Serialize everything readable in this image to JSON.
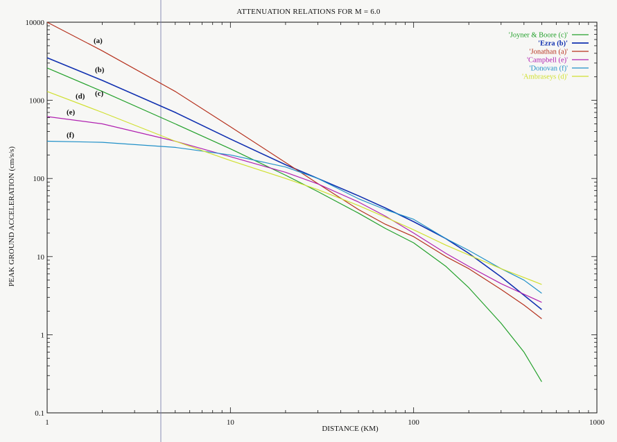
{
  "chart_data": {
    "type": "line",
    "title": "ATTENUATION RELATIONS FOR M = 6.0",
    "xlabel": "DISTANCE (KM)",
    "ylabel": "PEAK GROUND ACCELERATION (cm/s/s)",
    "xscale": "log",
    "yscale": "log",
    "xlim": [
      1,
      1000
    ],
    "ylim": [
      0.1,
      10000
    ],
    "x_ticks": [
      "1",
      "10",
      "100",
      "1000"
    ],
    "y_ticks": [
      "0.1",
      "1",
      "10",
      "100",
      "1000",
      "10000"
    ],
    "grid": false,
    "legend_position": "top-right",
    "series": [
      {
        "name": "'Joyner & Boore (c)'",
        "curve_label": "(c)",
        "color": "#22a02a",
        "x": [
          1,
          2,
          5,
          10,
          20,
          30,
          50,
          70,
          100,
          150,
          200,
          300,
          400,
          500
        ],
        "y": [
          2600,
          1300,
          500,
          240,
          110,
          68,
          36,
          23,
          15,
          7.5,
          4,
          1.4,
          0.6,
          0.25
        ]
      },
      {
        "name": "'Ezra (b)'",
        "curve_label": "(b)",
        "color": "#1030b0",
        "x": [
          1,
          2,
          5,
          10,
          20,
          30,
          50,
          70,
          100,
          150,
          200,
          300,
          400,
          500
        ],
        "y": [
          3500,
          1800,
          700,
          320,
          150,
          100,
          60,
          42,
          28,
          17,
          11,
          5.5,
          3.2,
          2.1
        ]
      },
      {
        "name": "'Jonathan (a)'",
        "curve_label": "(a)",
        "color": "#b5301c",
        "x": [
          1,
          2,
          5,
          10,
          20,
          30,
          50,
          70,
          100,
          150,
          200,
          300,
          400,
          500
        ],
        "y": [
          10000,
          4300,
          1300,
          460,
          160,
          86,
          40,
          26,
          18,
          10,
          7,
          3.8,
          2.4,
          1.6
        ]
      },
      {
        "name": "'Campbell (e)'",
        "curve_label": "(e)",
        "color": "#b020b0",
        "x": [
          1,
          2,
          5,
          10,
          20,
          30,
          50,
          70,
          100,
          150,
          200,
          300,
          400,
          500
        ],
        "y": [
          620,
          500,
          300,
          190,
          120,
          85,
          50,
          33,
          20,
          11,
          7.5,
          4.5,
          3.3,
          2.6
        ]
      },
      {
        "name": "'Donovan (f)'",
        "curve_label": "(f)",
        "color": "#2090c8",
        "x": [
          1,
          2,
          5,
          10,
          20,
          30,
          50,
          70,
          100,
          150,
          200,
          300,
          400,
          500
        ],
        "y": [
          300,
          290,
          250,
          200,
          140,
          100,
          55,
          40,
          30,
          17,
          12,
          7,
          5,
          3.4
        ]
      },
      {
        "name": "'Ambraseys (d)'",
        "curve_label": "(d)",
        "color": "#d0e030",
        "x": [
          1,
          2,
          5,
          10,
          20,
          30,
          50,
          70,
          100,
          150,
          200,
          300,
          400,
          500
        ],
        "y": [
          1300,
          700,
          300,
          170,
          100,
          72,
          45,
          32,
          22,
          14,
          10.5,
          7,
          5.4,
          4.4
        ]
      }
    ]
  }
}
